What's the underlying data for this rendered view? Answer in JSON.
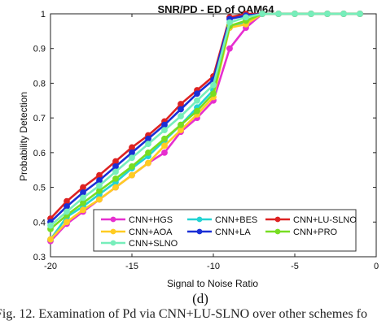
{
  "chart_data": {
    "type": "line",
    "title": "SNR/PD - ED of QAM64",
    "xlabel": "Signal to Noise Ratio",
    "ylabel": "Probability Detection",
    "xlim": [
      -20,
      0
    ],
    "ylim": [
      0.3,
      1.0
    ],
    "xticks": [
      "-20",
      "-15",
      "-10",
      "-5",
      "0"
    ],
    "yticks": [
      "0.3",
      "0.4",
      "0.5",
      "0.6",
      "0.7",
      "0.8",
      "0.9",
      "1"
    ],
    "grid": false,
    "legend_position": "bottom",
    "x": [
      -20,
      -19,
      -18,
      -17,
      -16,
      -15,
      -14,
      -13,
      -12,
      -11,
      -10,
      -9,
      -8,
      -7,
      -6,
      -5,
      -4,
      -3,
      -2,
      -1
    ],
    "series": [
      {
        "name": "CNN+HGS",
        "color": "#e62fcf",
        "values": [
          0.345,
          0.395,
          0.43,
          0.465,
          0.5,
          0.535,
          0.57,
          0.6,
          0.66,
          0.7,
          0.75,
          0.9,
          0.96,
          1,
          1,
          1,
          1,
          1,
          1,
          1
        ]
      },
      {
        "name": "CNN+BES",
        "color": "#22d3d3",
        "values": [
          0.35,
          0.415,
          0.445,
          0.48,
          0.515,
          0.555,
          0.59,
          0.635,
          0.68,
          0.73,
          0.78,
          0.96,
          0.975,
          1,
          1,
          1,
          1,
          1,
          1,
          1
        ]
      },
      {
        "name": "CNN+LU-SLNO",
        "color": "#dd2222",
        "values": [
          0.41,
          0.46,
          0.5,
          0.535,
          0.575,
          0.615,
          0.65,
          0.69,
          0.74,
          0.78,
          0.82,
          0.99,
          1,
          1,
          1,
          1,
          1,
          1,
          1,
          1
        ]
      },
      {
        "name": "CNN+AOA",
        "color": "#ffcc22",
        "values": [
          0.35,
          0.4,
          0.435,
          0.465,
          0.5,
          0.535,
          0.57,
          0.62,
          0.665,
          0.71,
          0.76,
          0.96,
          0.97,
          1,
          1,
          1,
          1,
          1,
          1,
          1
        ]
      },
      {
        "name": "CNN+LA",
        "color": "#1a2fd6",
        "values": [
          0.4,
          0.445,
          0.485,
          0.52,
          0.56,
          0.6,
          0.64,
          0.68,
          0.725,
          0.77,
          0.81,
          0.985,
          0.995,
          1,
          1,
          1,
          1,
          1,
          1,
          1
        ]
      },
      {
        "name": "CNN+PRO",
        "color": "#77dd22",
        "values": [
          0.38,
          0.42,
          0.455,
          0.49,
          0.525,
          0.56,
          0.6,
          0.64,
          0.68,
          0.72,
          0.77,
          0.965,
          0.98,
          1,
          1,
          1,
          1,
          1,
          1,
          1
        ]
      },
      {
        "name": "CNN+SLNO",
        "color": "#77eebb",
        "values": [
          0.39,
          0.43,
          0.47,
          0.505,
          0.545,
          0.585,
          0.625,
          0.665,
          0.705,
          0.75,
          0.795,
          0.975,
          0.99,
          1,
          1,
          1,
          1,
          1,
          1,
          1
        ]
      }
    ],
    "legend_order": [
      "CNN+HGS",
      "CNN+BES",
      "CNN+LU-SLNO",
      "CNN+AOA",
      "CNN+LA",
      "CNN+PRO",
      "CNN+SLNO"
    ]
  },
  "panel_label": "(d)",
  "caption_text": "Fig. 12.  Examination of Pd via CNN+LU-SLNO over other schemes fo"
}
